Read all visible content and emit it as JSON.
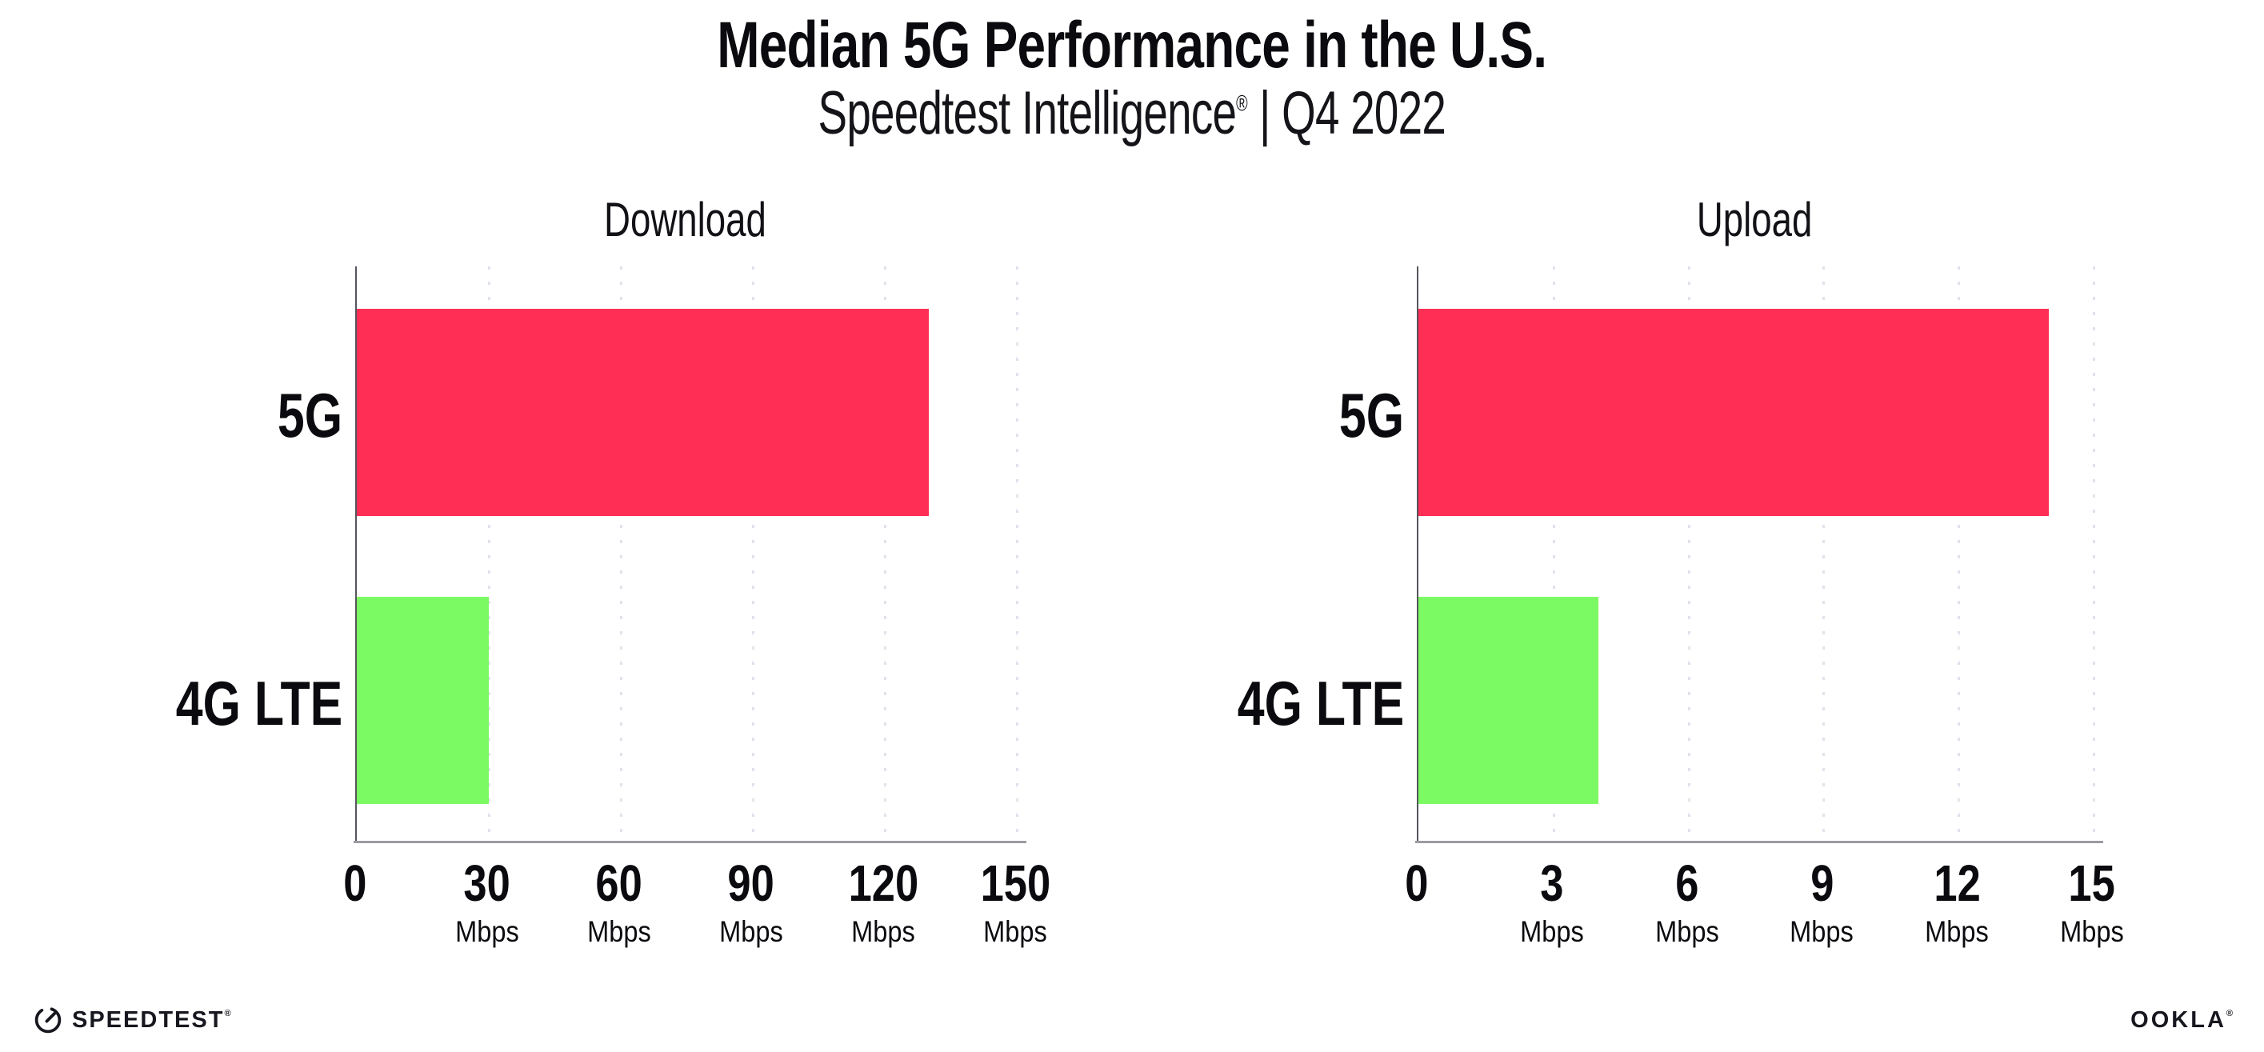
{
  "header": {
    "title": "Median 5G Performance in the U.S.",
    "subtitle_brand": "Speedtest Intelligence",
    "subtitle_reg": "®",
    "subtitle_rest": " | Q4 2022"
  },
  "chart_data": [
    {
      "type": "bar",
      "orientation": "horizontal",
      "title": "Download",
      "categories": [
        "5G",
        "4G LTE"
      ],
      "values": [
        130,
        30
      ],
      "unit": "Mbps",
      "xlim": [
        0,
        150
      ],
      "xticks": [
        0,
        30,
        60,
        90,
        120,
        150
      ],
      "bar_colors": [
        "#FF2E55",
        "#7CFA64"
      ],
      "grid": "vertical dotted, on every tick",
      "legend": "none"
    },
    {
      "type": "bar",
      "orientation": "horizontal",
      "title": "Upload",
      "categories": [
        "5G",
        "4G LTE"
      ],
      "values": [
        14,
        4
      ],
      "unit": "Mbps",
      "xlim": [
        0,
        15
      ],
      "xticks": [
        0,
        3,
        6,
        9,
        12,
        15
      ],
      "bar_colors": [
        "#FF2E55",
        "#7CFA64"
      ],
      "grid": "vertical dotted, on every tick",
      "legend": "none"
    }
  ],
  "colors": {
    "bar_5g": "#FF2E55",
    "bar_4g_lte": "#7CFA64",
    "gridline": "#e2e2ed",
    "x_axis": "#9b9ba1",
    "y_axis": "#55555c"
  },
  "icons": {
    "speedtest": "gauge-icon"
  },
  "footer": {
    "speedtest_label": "SPEEDTEST",
    "speedtest_reg": "®",
    "ookla_label": "OOKLA",
    "ookla_reg": "®"
  }
}
